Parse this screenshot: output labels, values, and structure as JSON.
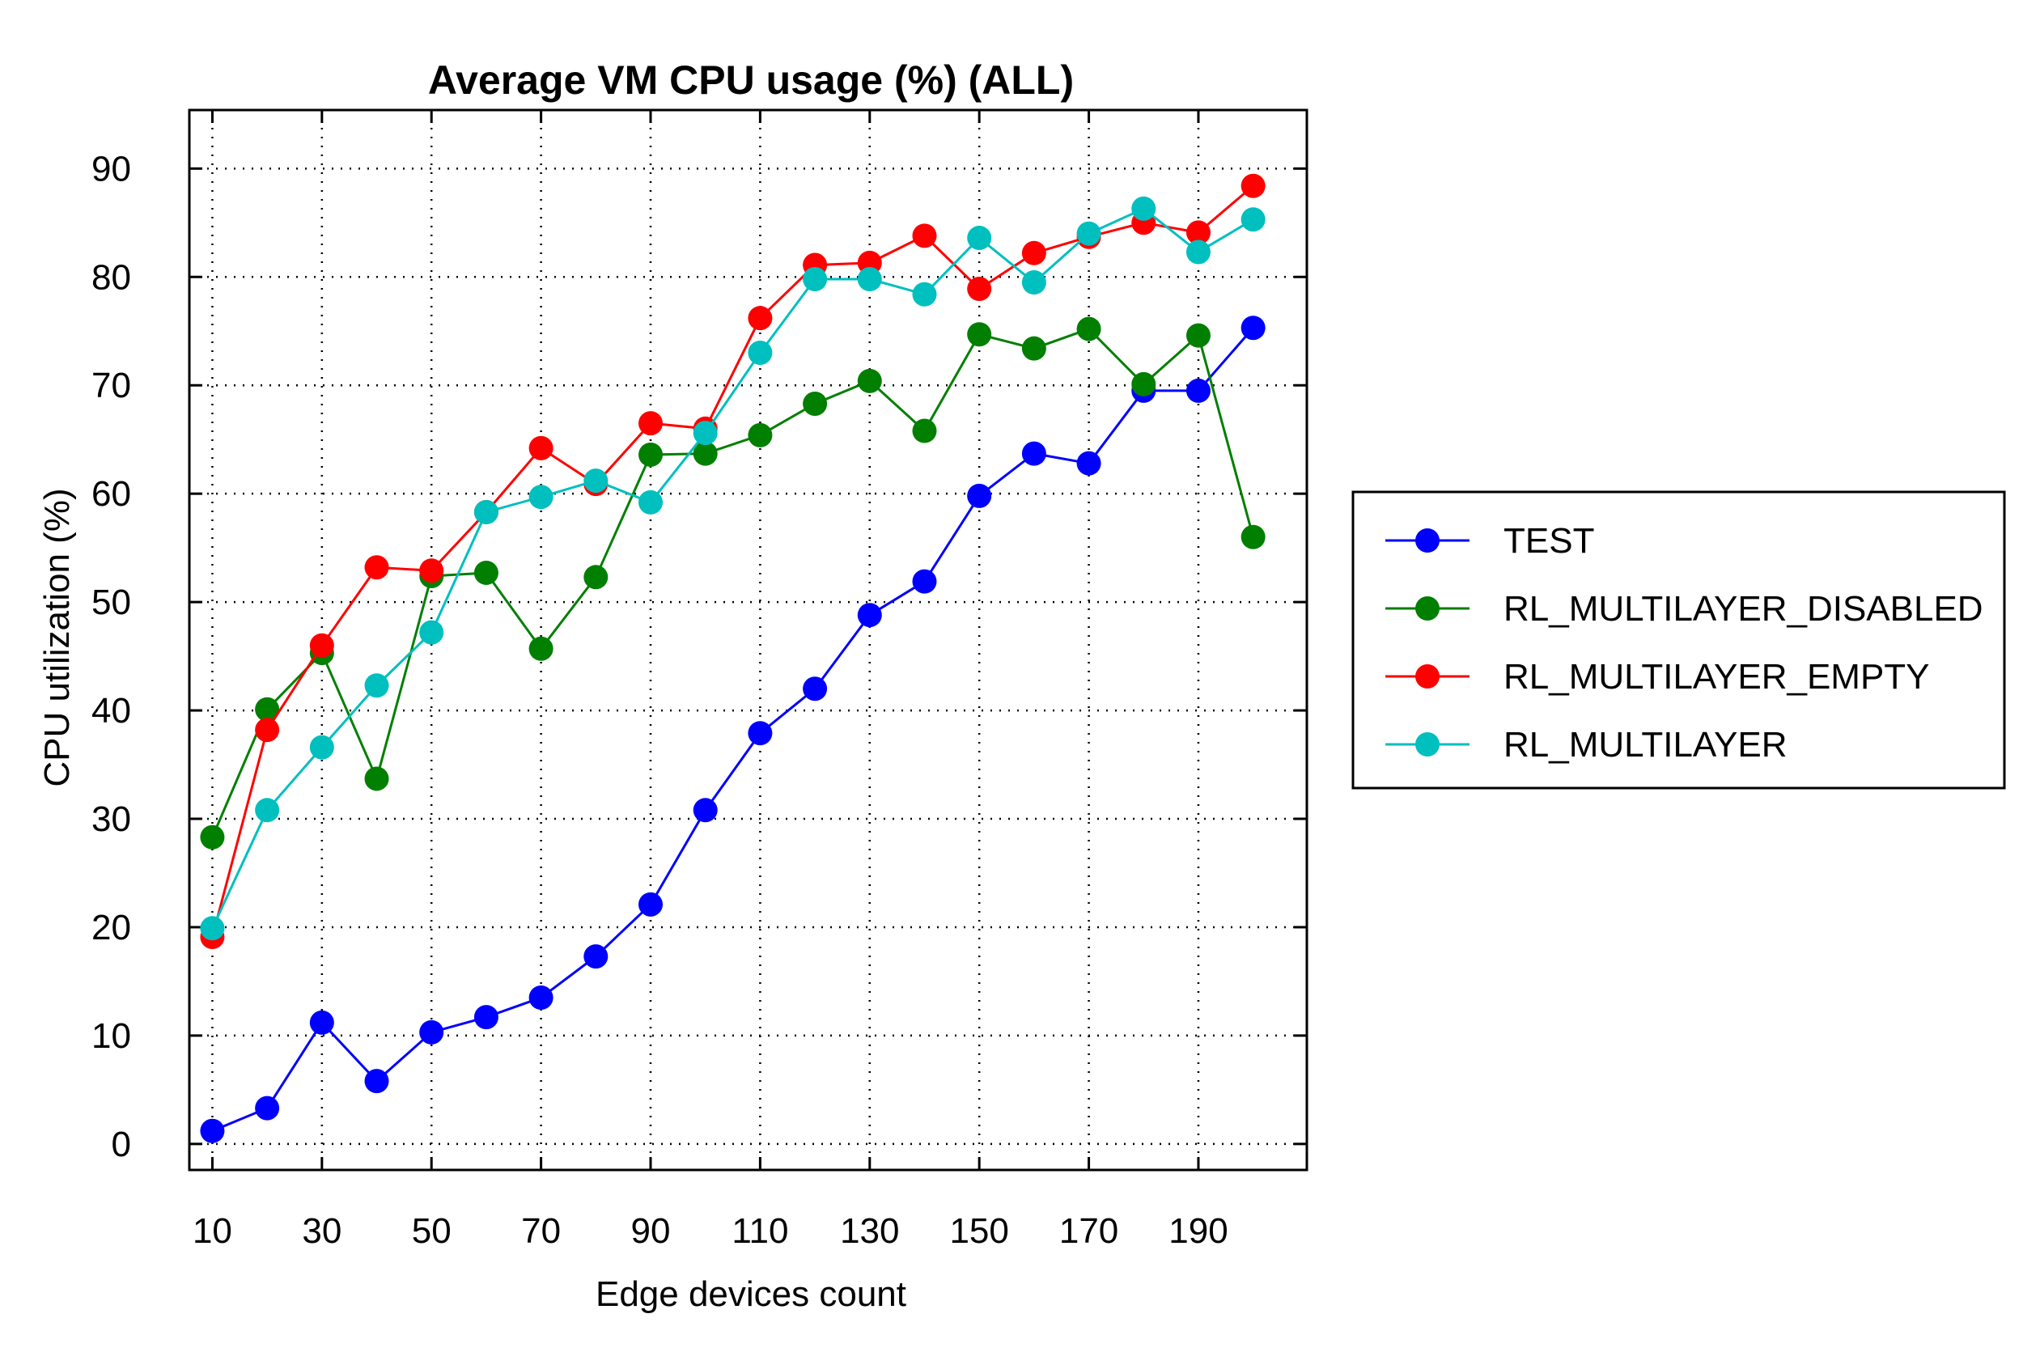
{
  "chart_data": {
    "type": "line",
    "title": "Average VM CPU usage (%) (ALL)",
    "xlabel": "Edge devices count",
    "ylabel": "CPU utilization (%)",
    "x": [
      10,
      20,
      30,
      40,
      50,
      60,
      70,
      80,
      90,
      100,
      110,
      120,
      130,
      140,
      150,
      160,
      170,
      180,
      190,
      200
    ],
    "xlim": [
      5.8,
      209.8
    ],
    "ylim": [
      -2.4,
      95.4
    ],
    "xticks": [
      10,
      30,
      50,
      70,
      90,
      110,
      130,
      150,
      170,
      190
    ],
    "xtick_labels": [
      "10",
      "30",
      "50",
      "70",
      "90",
      "110",
      "130",
      "150",
      "170",
      "190"
    ],
    "yticks": [
      0,
      10,
      20,
      30,
      40,
      50,
      60,
      70,
      80,
      90
    ],
    "ytick_labels": [
      "0",
      "10",
      "20",
      "30",
      "40",
      "50",
      "60",
      "70",
      "80",
      "90"
    ],
    "grid": true,
    "legend_position": "right",
    "series": [
      {
        "name": "TEST",
        "color": "#0000ff",
        "values": [
          1.2,
          3.3,
          11.2,
          5.8,
          10.3,
          11.7,
          13.5,
          17.3,
          22.1,
          30.8,
          37.9,
          42.0,
          48.8,
          51.9,
          59.8,
          63.7,
          62.8,
          69.5,
          69.5,
          75.3
        ]
      },
      {
        "name": "RL_MULTILAYER_DISABLED",
        "color": "#007f00",
        "values": [
          28.3,
          40.1,
          45.3,
          33.7,
          52.4,
          52.7,
          45.7,
          52.3,
          63.6,
          63.7,
          65.4,
          68.3,
          70.4,
          65.8,
          74.7,
          73.4,
          75.2,
          70.1,
          74.6,
          56.0
        ]
      },
      {
        "name": "RL_MULTILAYER_EMPTY",
        "color": "#ff0000",
        "values": [
          19.1,
          38.2,
          46.0,
          53.2,
          52.9,
          58.3,
          64.2,
          60.9,
          66.5,
          66.0,
          76.2,
          81.1,
          81.3,
          83.8,
          78.9,
          82.2,
          83.7,
          85.0,
          84.1,
          88.4
        ]
      },
      {
        "name": "RL_MULTILAYER",
        "color": "#00bfbf",
        "values": [
          19.9,
          30.8,
          36.6,
          42.3,
          47.2,
          58.3,
          59.7,
          61.2,
          59.2,
          65.6,
          73.0,
          79.8,
          79.8,
          78.4,
          83.6,
          79.5,
          84.0,
          86.3,
          82.3,
          85.3
        ]
      }
    ]
  }
}
